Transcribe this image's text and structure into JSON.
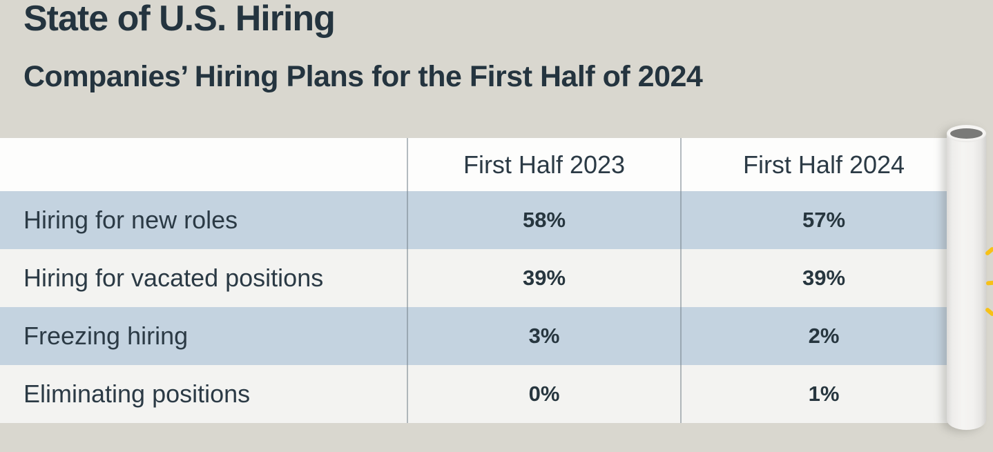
{
  "page": {
    "title": "State of U.S. Hiring",
    "subtitle": "Companies’ Hiring Plans for the First Half of 2024"
  },
  "table": {
    "column_headers": [
      "First Half 2023",
      "First Half 2024"
    ],
    "rows": [
      {
        "label": "Hiring for new roles",
        "values": [
          "58%",
          "57%"
        ]
      },
      {
        "label": "Hiring for vacated positions",
        "values": [
          "39%",
          "39%"
        ]
      },
      {
        "label": "Freezing hiring",
        "values": [
          "3%",
          "2%"
        ]
      },
      {
        "label": "Eliminating positions",
        "values": [
          "0%",
          "1%"
        ]
      }
    ]
  },
  "chart_data": {
    "type": "table",
    "title": "State of U.S. Hiring",
    "subtitle": "Companies’ Hiring Plans for the First Half of 2024",
    "columns": [
      "",
      "First Half 2023",
      "First Half 2024"
    ],
    "categories": [
      "Hiring for new roles",
      "Hiring for vacated positions",
      "Freezing hiring",
      "Eliminating positions"
    ],
    "series": [
      {
        "name": "First Half 2023",
        "values": [
          58,
          39,
          3,
          0
        ]
      },
      {
        "name": "First Half 2024",
        "values": [
          57,
          39,
          2,
          1
        ]
      }
    ],
    "value_unit": "%",
    "layout": {
      "row_striping": "blue/white alternating",
      "grid": "vertical column separators only",
      "legend_position": "none"
    }
  },
  "icons": {
    "paper_roll": "paper-roll-cylinder",
    "sparkle": "sparkle-rays"
  },
  "colors": {
    "background": "#d9d7cf",
    "header_row": "#fdfdfc",
    "row_blue": "#c4d3e0",
    "row_light": "#f3f3f1",
    "text_dark": "#24343f",
    "divider_gray": "#76848c",
    "roll_body": "#f2f1ef",
    "roll_core_gray": "#7a7a78",
    "sparkle_yellow": "#f7c117"
  }
}
